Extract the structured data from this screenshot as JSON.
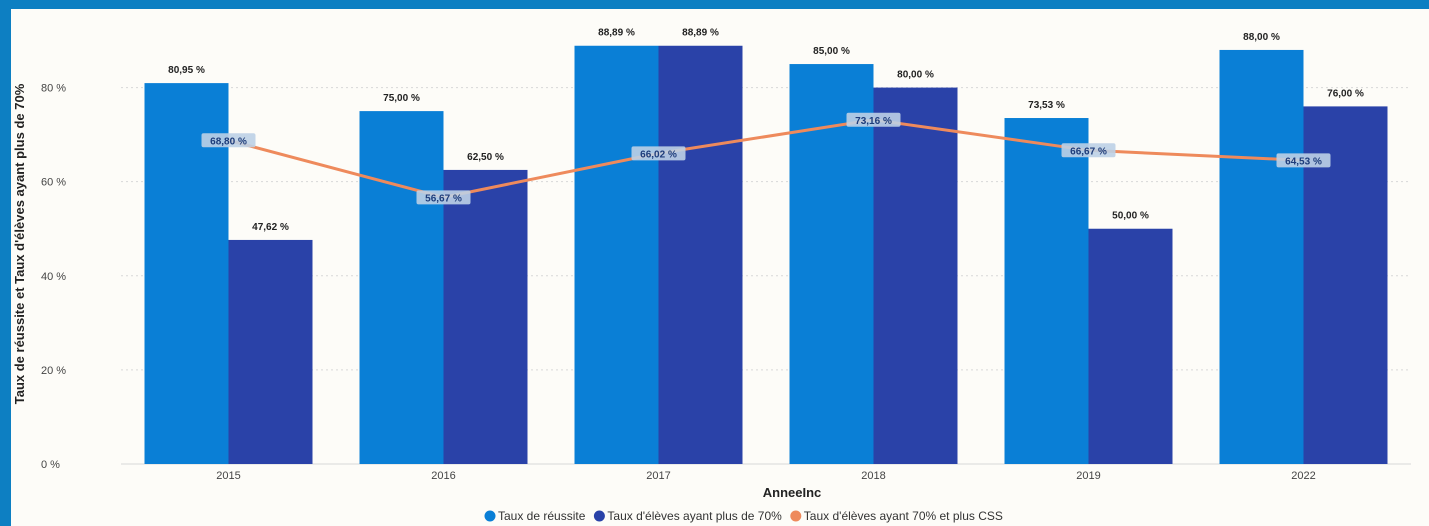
{
  "chart_data": {
    "type": "bar",
    "categories": [
      "2015",
      "2016",
      "2017",
      "2018",
      "2019",
      "2022"
    ],
    "xlabel": "AnneeInc",
    "ylabel": "Taux de réussite et Taux d'élèves ayant plus de 70%",
    "ylim": [
      0,
      0.95
    ],
    "yticks": [
      "0 %",
      "20 %",
      "40 %",
      "60 %",
      "80 %"
    ],
    "legend_position": "bottom-center",
    "series": [
      {
        "name": "Taux de réussite",
        "kind": "bar",
        "color": "#0a7fd6",
        "values": [
          0.8095,
          0.75,
          0.8889,
          0.85,
          0.7353,
          0.88
        ],
        "labels": [
          "80,95 %",
          "75,00 %",
          "88,89 %",
          "85,00 %",
          "73,53 %",
          "88,00 %"
        ]
      },
      {
        "name": "Taux d'élèves ayant plus de 70%",
        "kind": "bar",
        "color": "#2a42a8",
        "values": [
          0.4762,
          0.625,
          0.8889,
          0.8,
          0.5,
          0.76
        ],
        "labels": [
          "47,62 %",
          "62,50 %",
          "88,89 %",
          "80,00 %",
          "50,00 %",
          "76,00 %"
        ]
      },
      {
        "name": "Taux d'élèves ayant 70% et plus CSS",
        "kind": "line",
        "color": "#ee8a5c",
        "values": [
          0.688,
          0.5667,
          0.6602,
          0.7316,
          0.6667,
          0.6453
        ],
        "labels": [
          "68,80 %",
          "56,67 %",
          "66,02 %",
          "73,16 %",
          "66,67 %",
          "64,53 %"
        ]
      }
    ]
  }
}
